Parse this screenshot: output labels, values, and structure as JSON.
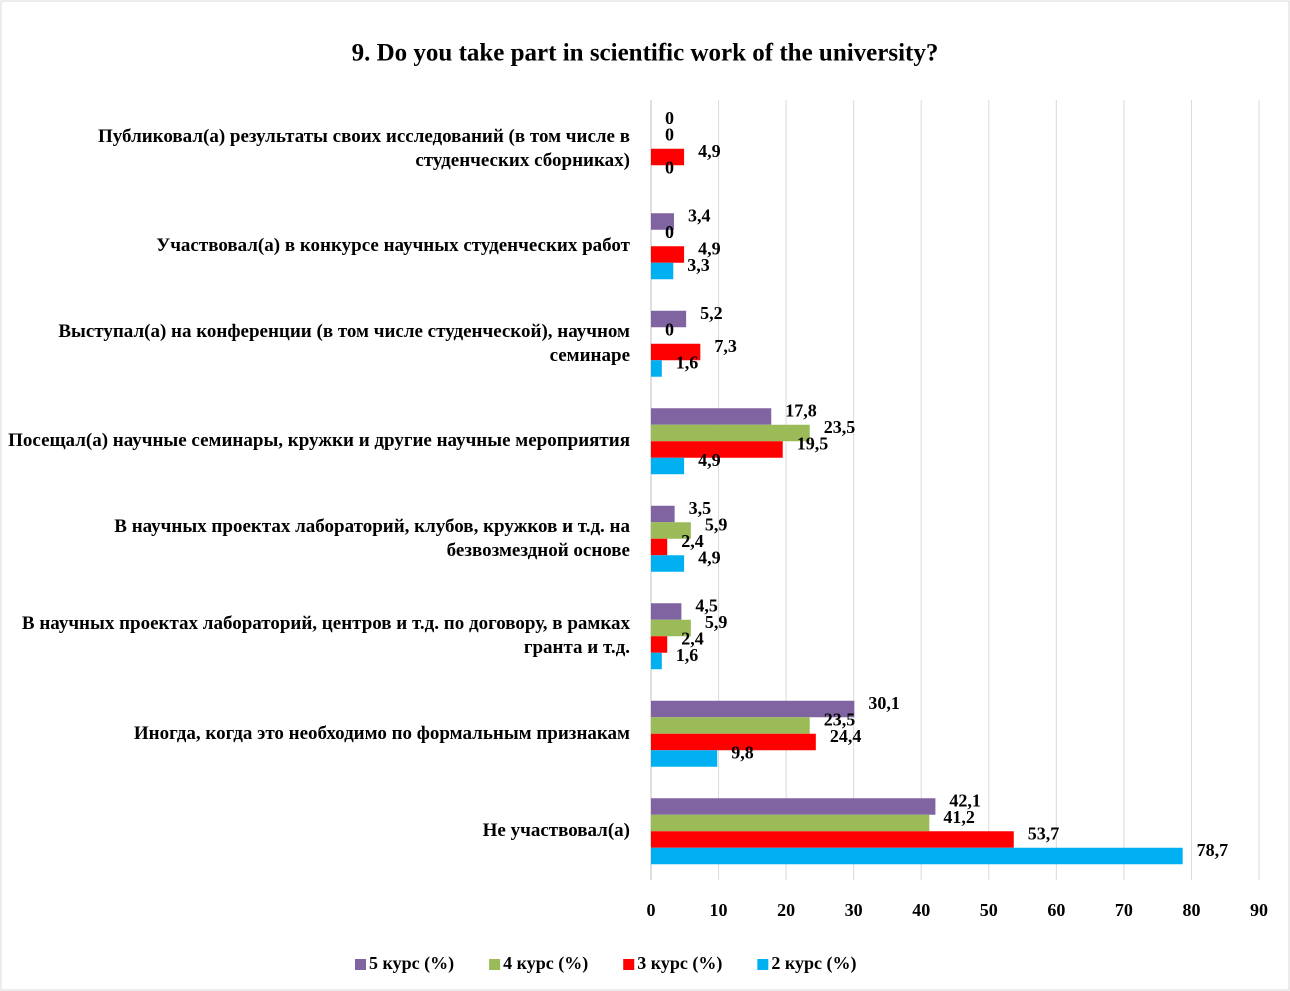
{
  "chart_data": {
    "type": "barh",
    "title": "9. Do you take part in scientific work of the university?",
    "categories": [
      "Публиковал(а) результаты своих исследований (в том числе в студенческих сборниках)",
      "Участвовал(а) в конкурсе научных студенческих работ",
      "Выступал(а) на конференции (в том числе студенческой), научном семинаре",
      "Посещал(а) научные семинары, кружки и другие научные мероприятия",
      "В научных проектах лабораторий, клубов, кружков и т.д. на безвозмездной основе",
      "В научных проектах лабораторий, центров и т.д. по договору, в рамках гранта и т.д.",
      "Иногда, когда это необходимо по формальным признакам",
      "Не участвовал(а)"
    ],
    "series": [
      {
        "name": "5 курс (%)",
        "color": "#8064a2",
        "values": [
          0,
          3.4,
          5.2,
          17.8,
          3.5,
          4.5,
          30.1,
          42.1
        ],
        "value_labels": [
          "0",
          "3,4",
          "5,2",
          "17,8",
          "3,5",
          "4,5",
          "30,1",
          "42,1"
        ]
      },
      {
        "name": "4 курс (%)",
        "color": "#9bbb59",
        "values": [
          0,
          0,
          0,
          23.5,
          5.9,
          5.9,
          23.5,
          41.2
        ],
        "value_labels": [
          "0",
          "0",
          "0",
          "23,5",
          "5,9",
          "5,9",
          "23,5",
          "41,2"
        ]
      },
      {
        "name": "3 курс (%)",
        "color": "#ff0000",
        "values": [
          4.9,
          4.9,
          7.3,
          19.5,
          2.4,
          2.4,
          24.4,
          53.7
        ],
        "value_labels": [
          "4,9",
          "4,9",
          "7,3",
          "19,5",
          "2,4",
          "2,4",
          "24,4",
          "53,7"
        ]
      },
      {
        "name": "2 курс (%)",
        "color": "#00b0f0",
        "values": [
          0,
          3.3,
          1.6,
          4.9,
          4.9,
          1.6,
          9.8,
          78.7
        ],
        "value_labels": [
          "0",
          "3,3",
          "1,6",
          "4,9",
          "4,9",
          "1,6",
          "9,8",
          "78,7"
        ]
      }
    ],
    "xlim": [
      0,
      90
    ],
    "xticks": [
      0,
      10,
      20,
      30,
      40,
      50,
      60,
      70,
      80,
      90
    ],
    "grid": true,
    "legend": "bottom"
  }
}
